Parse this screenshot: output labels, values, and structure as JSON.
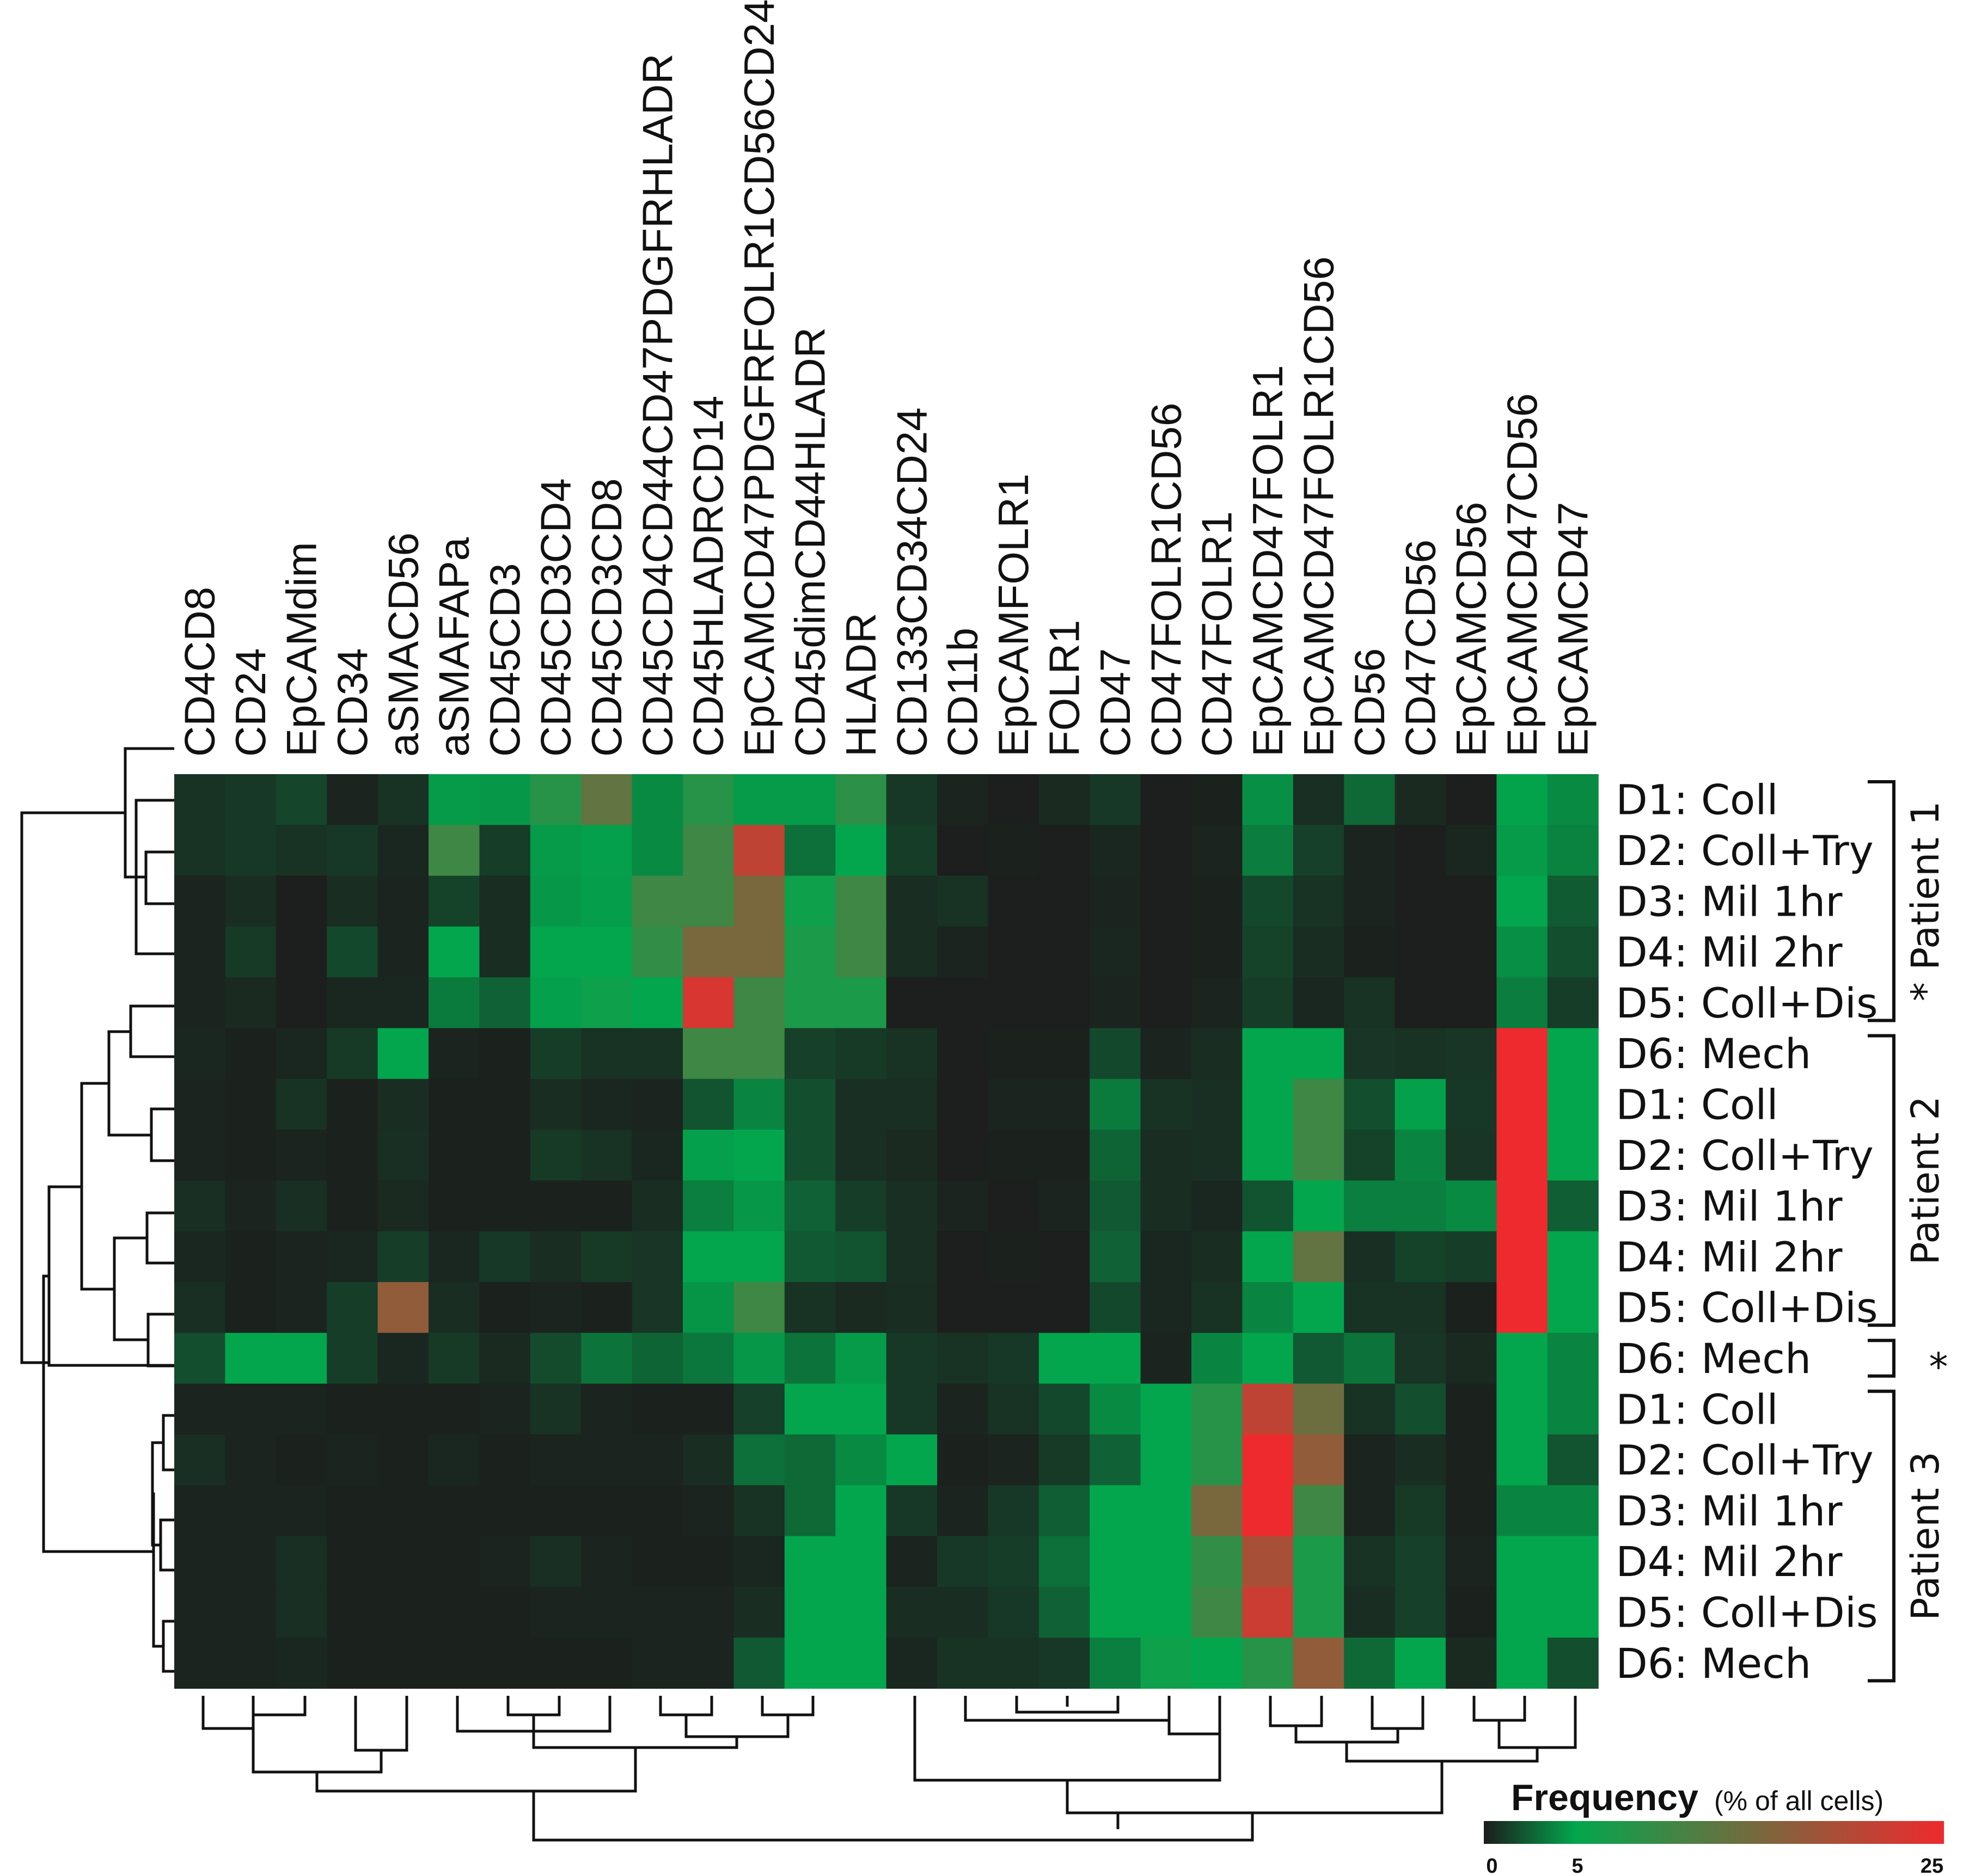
{
  "chart_data": {
    "type": "heatmap",
    "columns": [
      "CD4CD8",
      "CD24",
      "EpCAMdim",
      "CD34",
      "aSMACD56",
      "aSMAFAPa",
      "CD45CD3",
      "CD45CD3CD4",
      "CD45CD3CD8",
      "CD45CD4CD44CD47PDGFRHLADR",
      "CD45HLADRCD14",
      "EpCAMCD47PDGFRFOLR1CD56CD24",
      "CD45dimCD44HLADR",
      "HLADR",
      "CD133CD34CD24",
      "CD11b",
      "EpCAMFOLR1",
      "FOLR1",
      "CD47",
      "CD47FOLR1CD56",
      "CD47FOLR1",
      "EpCAMCD47FOLR1",
      "EpCAMCD47FOLR1CD56",
      "CD56",
      "CD47CD56",
      "EpCAMCD56",
      "EpCAMCD47CD56",
      "EpCAMCD47"
    ],
    "rows": [
      "D1: Coll",
      "D2: Coll+Try",
      "D3: Mil 1hr",
      "D4: Mil 2hr",
      "D5: Coll+Dis",
      "D6: Mech",
      "D1: Coll",
      "D2: Coll+Try",
      "D3: Mil 1hr",
      "D4: Mil 2hr",
      "D5: Coll+Dis",
      "D6: Mech",
      "D1: Coll",
      "D2: Coll+Try",
      "D3: Mil 1hr",
      "D4: Mil 2hr",
      "D5: Coll+Dis",
      "D6: Mech"
    ],
    "values": [
      [
        0.8,
        1.0,
        1.5,
        0.3,
        0.8,
        4.6,
        4.5,
        8.0,
        13.0,
        4.0,
        8.0,
        4.6,
        4.6,
        8.5,
        1.0,
        0.3,
        0.1,
        0.5,
        1.0,
        0.1,
        0.2,
        4.2,
        0.7,
        2.8,
        0.5,
        0.1,
        4.9,
        4.0
      ],
      [
        0.8,
        1.0,
        0.8,
        1.0,
        0.4,
        10.0,
        1.2,
        4.6,
        4.8,
        4.0,
        10.0,
        21.0,
        3.0,
        5.0,
        1.2,
        0.1,
        0.2,
        0.1,
        0.4,
        0.1,
        0.3,
        3.5,
        1.3,
        0.3,
        0.1,
        0.4,
        4.6,
        3.7
      ],
      [
        0.3,
        0.6,
        0.1,
        0.6,
        0.3,
        1.4,
        0.6,
        4.5,
        4.7,
        10.0,
        10.0,
        15.0,
        6.0,
        10.0,
        0.6,
        0.8,
        0.1,
        0.1,
        0.3,
        0.1,
        0.2,
        1.6,
        0.8,
        0.3,
        0.1,
        0.1,
        5.0,
        2.3
      ],
      [
        0.3,
        1.1,
        0.1,
        1.6,
        0.3,
        5.0,
        0.6,
        5.0,
        5.0,
        9.0,
        15.0,
        15.0,
        7.0,
        10.0,
        0.6,
        0.3,
        0.1,
        0.1,
        0.4,
        0.1,
        0.2,
        1.4,
        0.6,
        0.2,
        0.1,
        0.1,
        4.2,
        1.8
      ],
      [
        0.3,
        0.5,
        0.1,
        0.4,
        0.4,
        3.4,
        2.5,
        4.8,
        6.0,
        5.0,
        23.0,
        10.0,
        7.0,
        7.0,
        0.1,
        0.1,
        0.1,
        0.1,
        0.3,
        0.1,
        0.3,
        1.2,
        0.4,
        0.8,
        0.1,
        0.1,
        3.5,
        1.2
      ],
      [
        0.4,
        0.2,
        0.4,
        1.1,
        5.0,
        0.3,
        0.2,
        1.2,
        0.8,
        0.8,
        10.0,
        10.0,
        1.3,
        1.1,
        0.8,
        0.1,
        0.2,
        0.2,
        1.6,
        0.3,
        0.6,
        5.0,
        5.0,
        0.9,
        0.8,
        0.9,
        25.0,
        5.0
      ],
      [
        0.3,
        0.2,
        0.8,
        0.2,
        0.6,
        0.2,
        0.2,
        0.6,
        0.4,
        0.3,
        2.0,
        3.8,
        1.8,
        0.7,
        0.7,
        0.1,
        0.3,
        0.3,
        3.4,
        0.8,
        0.7,
        5.0,
        10.0,
        1.8,
        4.8,
        1.0,
        25.0,
        5.0
      ],
      [
        0.3,
        0.2,
        0.3,
        0.2,
        0.7,
        0.2,
        0.2,
        1.1,
        0.8,
        0.4,
        4.8,
        5.0,
        1.8,
        0.7,
        0.5,
        0.1,
        0.2,
        0.2,
        2.6,
        0.6,
        0.7,
        5.0,
        10.0,
        1.4,
        3.8,
        0.9,
        25.0,
        5.0
      ],
      [
        0.7,
        0.3,
        0.7,
        0.2,
        0.5,
        0.2,
        0.2,
        0.2,
        0.2,
        0.6,
        3.6,
        4.5,
        2.5,
        1.2,
        0.7,
        0.3,
        0.1,
        0.3,
        2.2,
        0.6,
        0.4,
        2.0,
        5.0,
        3.6,
        3.6,
        4.0,
        25.0,
        2.4
      ],
      [
        0.4,
        0.2,
        0.3,
        0.4,
        1.2,
        0.4,
        1.0,
        0.6,
        1.1,
        0.9,
        5.0,
        5.0,
        2.2,
        2.0,
        0.7,
        0.1,
        0.2,
        0.1,
        2.5,
        0.4,
        0.6,
        5.0,
        13.0,
        0.7,
        1.4,
        1.2,
        25.0,
        5.0
      ],
      [
        0.7,
        0.2,
        0.3,
        1.2,
        17.0,
        0.6,
        0.2,
        0.3,
        0.2,
        0.9,
        4.4,
        10.0,
        0.8,
        0.5,
        0.6,
        0.1,
        0.1,
        0.1,
        1.6,
        0.4,
        0.8,
        3.8,
        5.0,
        0.8,
        0.8,
        0.2,
        25.0,
        5.0
      ],
      [
        1.8,
        5.0,
        5.0,
        1.2,
        0.4,
        1.1,
        0.5,
        1.7,
        3.2,
        2.6,
        3.3,
        4.5,
        3.2,
        4.6,
        1.0,
        0.8,
        1.0,
        5.0,
        5.0,
        0.3,
        3.8,
        5.0,
        2.2,
        3.2,
        0.9,
        0.5,
        5.0,
        3.8
      ],
      [
        0.3,
        0.3,
        0.3,
        0.2,
        0.2,
        0.2,
        0.3,
        0.8,
        0.3,
        0.2,
        0.2,
        1.3,
        5.0,
        5.0,
        1.0,
        0.3,
        0.8,
        1.6,
        4.0,
        5.0,
        8.0,
        21.0,
        14.0,
        0.8,
        1.8,
        0.2,
        5.0,
        3.8
      ],
      [
        0.7,
        0.3,
        0.2,
        0.3,
        0.2,
        0.4,
        0.2,
        0.3,
        0.3,
        0.3,
        0.6,
        3.0,
        2.8,
        4.0,
        5.0,
        0.2,
        0.3,
        1.1,
        2.5,
        5.0,
        8.0,
        25.0,
        17.0,
        0.3,
        0.6,
        0.2,
        5.0,
        2.0
      ],
      [
        0.3,
        0.3,
        0.3,
        0.2,
        0.2,
        0.2,
        0.2,
        0.2,
        0.2,
        0.2,
        0.3,
        0.8,
        2.8,
        5.0,
        1.0,
        0.3,
        1.0,
        2.4,
        5.0,
        5.0,
        15.0,
        25.0,
        10.0,
        0.3,
        1.1,
        0.2,
        3.8,
        3.8
      ],
      [
        0.3,
        0.3,
        0.7,
        0.2,
        0.2,
        0.2,
        0.3,
        0.7,
        0.3,
        0.2,
        0.2,
        0.4,
        5.0,
        5.0,
        0.3,
        1.0,
        1.2,
        3.0,
        5.0,
        5.0,
        9.0,
        19.0,
        7.0,
        0.8,
        1.3,
        0.3,
        5.0,
        5.0
      ],
      [
        0.3,
        0.3,
        0.7,
        0.2,
        0.2,
        0.2,
        0.2,
        0.3,
        0.3,
        0.3,
        0.3,
        0.6,
        5.0,
        5.0,
        0.6,
        0.6,
        1.0,
        2.5,
        5.0,
        5.0,
        10.0,
        22.0,
        7.0,
        0.6,
        1.3,
        0.2,
        5.0,
        5.0
      ],
      [
        0.3,
        0.3,
        0.4,
        0.2,
        0.2,
        0.2,
        0.2,
        0.2,
        0.2,
        0.3,
        0.3,
        2.2,
        5.0,
        5.0,
        0.4,
        0.8,
        0.8,
        1.0,
        3.6,
        6.0,
        5.0,
        8.0,
        17.0,
        2.8,
        5.0,
        0.5,
        5.0,
        1.8
      ]
    ],
    "groups": [
      {
        "label": "* Patient 1",
        "rows": [
          0,
          4
        ]
      },
      {
        "label": "Patient 2",
        "rows": [
          5,
          10
        ]
      },
      {
        "label": "*",
        "rows": [
          11,
          11
        ]
      },
      {
        "label": "Patient 3",
        "rows": [
          12,
          17
        ]
      }
    ],
    "legend": {
      "title": "Frequency",
      "subtitle": "(% of all cells)",
      "ticks": [
        "0",
        "5",
        "25"
      ],
      "tick_values": [
        0,
        5,
        25
      ],
      "colors": [
        "#1c1c1c",
        "#03a64d",
        "#ee2a2e"
      ],
      "placement": "bottom-right"
    }
  }
}
